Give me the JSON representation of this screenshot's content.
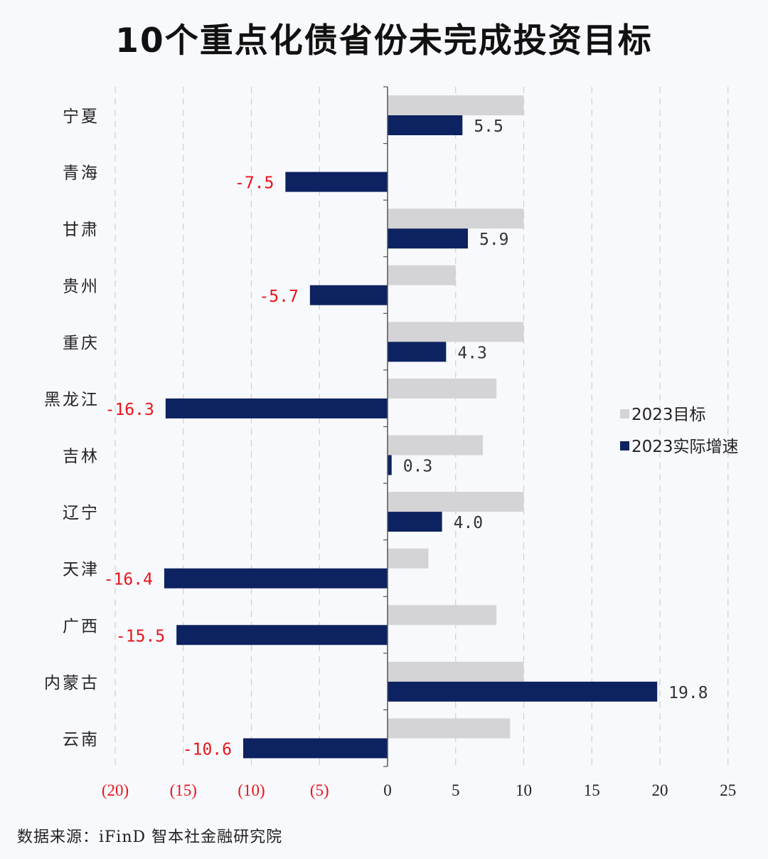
{
  "title": "10个重点化债省份未完成投资目标",
  "source": "数据来源：iFinD  智本社金融研究院",
  "chart_data": {
    "type": "bar",
    "orientation": "horizontal",
    "title": "10个重点化债省份未完成投资目标",
    "categories": [
      "宁夏",
      "青海",
      "甘肃",
      "贵州",
      "重庆",
      "黑龙江",
      "吉林",
      "辽宁",
      "天津",
      "广西",
      "内蒙古",
      "云南"
    ],
    "series": [
      {
        "name": "2023目标",
        "color": "#d4d4d6",
        "values": [
          10,
          null,
          10,
          5,
          10,
          8,
          7,
          10,
          3,
          8,
          10,
          9
        ]
      },
      {
        "name": "2023实际增速",
        "color": "#0d2260",
        "values": [
          5.5,
          -7.5,
          5.9,
          -5.7,
          4.3,
          -16.3,
          0.3,
          4.0,
          -16.4,
          -15.5,
          19.8,
          -10.6
        ]
      }
    ],
    "data_labels": [
      "5.5",
      "-7.5",
      "5.9",
      "-5.7",
      "4.3",
      "-16.3",
      "0.3",
      "4.0",
      "-16.4",
      "-15.5",
      "19.8",
      "-10.6"
    ],
    "xlim": [
      -20,
      25
    ],
    "x_ticks": [
      -20,
      -15,
      -10,
      -5,
      0,
      5,
      10,
      15,
      20,
      25
    ],
    "x_tick_labels": [
      "(20)",
      "(15)",
      "(10)",
      "(5)",
      "0",
      "5",
      "10",
      "15",
      "20",
      "25"
    ],
    "grid": "vertical dashed",
    "legend_position": "right",
    "negative_label_color": "#e8141b",
    "positive_label_color": "#333333"
  }
}
